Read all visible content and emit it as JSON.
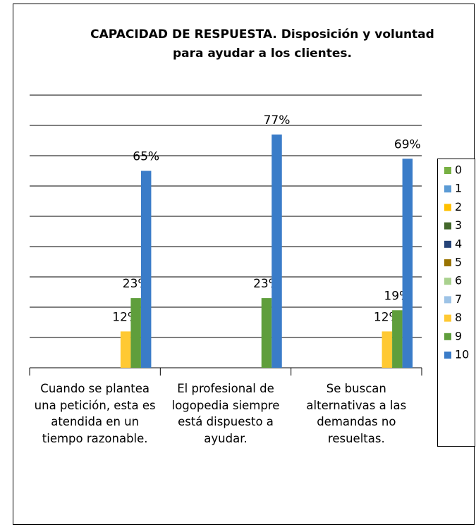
{
  "chart_data": {
    "type": "bar",
    "title": "CAPACIDAD DE RESPUESTA. Disposición y voluntad para ayudar a los clientes.",
    "categories": [
      "Cuando se plantea una petición, esta es atendida en un tiempo razonable.",
      "El profesional de logopedia siempre está dispuesto a ayudar.",
      "Se buscan alternativas a las demandas no resueltas."
    ],
    "series": [
      {
        "name": "0",
        "color": "#77b043",
        "values": [
          null,
          null,
          null
        ]
      },
      {
        "name": "1",
        "color": "#5b9bd5",
        "values": [
          null,
          null,
          null
        ]
      },
      {
        "name": "2",
        "color": "#ffc000",
        "values": [
          null,
          null,
          null
        ]
      },
      {
        "name": "3",
        "color": "#43682b",
        "values": [
          null,
          null,
          null
        ]
      },
      {
        "name": "4",
        "color": "#264478",
        "values": [
          null,
          null,
          null
        ]
      },
      {
        "name": "5",
        "color": "#997300",
        "values": [
          null,
          null,
          null
        ]
      },
      {
        "name": "6",
        "color": "#a9d18e",
        "values": [
          null,
          null,
          null
        ]
      },
      {
        "name": "7",
        "color": "#9dc3e6",
        "values": [
          null,
          null,
          null
        ]
      },
      {
        "name": "8",
        "color": "#ffc933",
        "values": [
          12,
          null,
          12
        ],
        "value_labels": [
          "12%",
          null,
          "12%"
        ]
      },
      {
        "name": "9",
        "color": "#5f9e3c",
        "values": [
          23,
          23,
          19
        ],
        "value_labels": [
          "23%",
          "23%",
          "19%"
        ]
      },
      {
        "name": "10",
        "color": "#3a7cc8",
        "values": [
          65,
          77,
          69
        ],
        "value_labels": [
          "65%",
          "77%",
          "69%"
        ]
      }
    ],
    "ylim": [
      0,
      90
    ],
    "yticks": [
      0,
      10,
      20,
      30,
      40,
      50,
      60,
      70,
      80,
      90
    ],
    "grid": true,
    "y_tick_labels": false,
    "legend": "right"
  }
}
